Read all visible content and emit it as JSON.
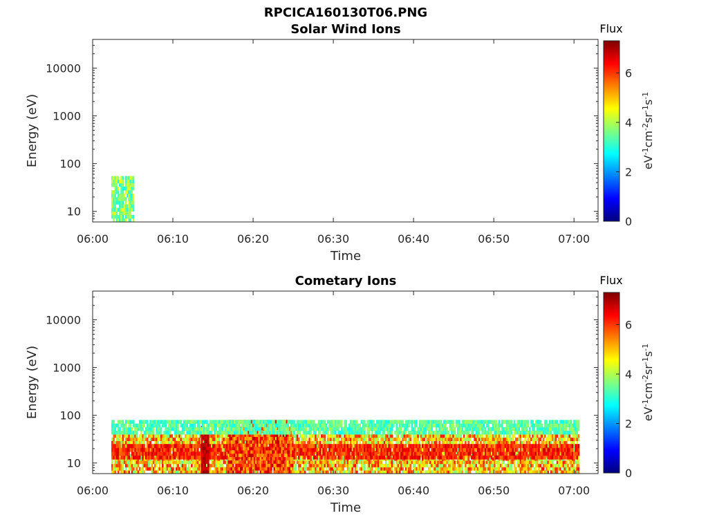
{
  "figure": {
    "title": "RPCICA160130T06.PNG"
  },
  "chart_data": [
    {
      "type": "heatmap",
      "title": "Solar Wind Ions",
      "xlabel": "Time",
      "ylabel": "Energy (eV)",
      "yscale": "log",
      "xlim": [
        "06:00",
        "07:03"
      ],
      "ylim": [
        6,
        40000
      ],
      "x_ticks": [
        "06:00",
        "06:10",
        "06:20",
        "06:30",
        "06:40",
        "06:50",
        "07:00"
      ],
      "y_ticks": [
        "10",
        "100",
        "1000",
        "10000"
      ],
      "colorbar": {
        "title": "Flux",
        "label": "eV-1cm-2sr-1s-1",
        "range": [
          0,
          7.3
        ],
        "ticks": [
          "0",
          "2",
          "4",
          "6"
        ],
        "colormap": "jet"
      },
      "data_regions": [
        {
          "t_start": "06:02:20",
          "t_end": "06:05:10",
          "e_min": 6,
          "e_max": 55,
          "flux_min": 2.8,
          "flux_max": 4.5
        }
      ]
    },
    {
      "type": "heatmap",
      "title": "Cometary Ions",
      "xlabel": "Time",
      "ylabel": "Energy (eV)",
      "yscale": "log",
      "xlim": [
        "06:00",
        "07:03"
      ],
      "ylim": [
        6,
        40000
      ],
      "x_ticks": [
        "06:00",
        "06:10",
        "06:20",
        "06:30",
        "06:40",
        "06:50",
        "07:00"
      ],
      "y_ticks": [
        "10",
        "100",
        "1000",
        "10000"
      ],
      "colorbar": {
        "title": "Flux",
        "label": "eV-1cm-2sr-1s-1",
        "range": [
          0,
          7.3
        ],
        "ticks": [
          "0",
          "2",
          "4",
          "6"
        ],
        "colormap": "jet"
      },
      "data_regions": [
        {
          "t_start": "06:02:20",
          "t_end": "07:00:40",
          "e_min": 6,
          "e_max": 40,
          "flux_min": 3.5,
          "flux_max": 6.3
        },
        {
          "t_start": "06:02:20",
          "t_end": "07:00:40",
          "e_min": 12,
          "e_max": 25,
          "flux_min": 5.5,
          "flux_max": 6.8
        },
        {
          "t_start": "06:13:30",
          "t_end": "06:14:30",
          "e_min": 6,
          "e_max": 60,
          "flux_min": 6.5,
          "flux_max": 7.2
        },
        {
          "t_start": "06:16:50",
          "t_end": "06:25:00",
          "e_min": 6,
          "e_max": 80,
          "flux_min": 5.0,
          "flux_max": 6.9
        },
        {
          "t_start": "06:02:20",
          "t_end": "07:00:40",
          "e_min": 40,
          "e_max": 80,
          "flux_min": 2.8,
          "flux_max": 4.0
        }
      ]
    }
  ]
}
